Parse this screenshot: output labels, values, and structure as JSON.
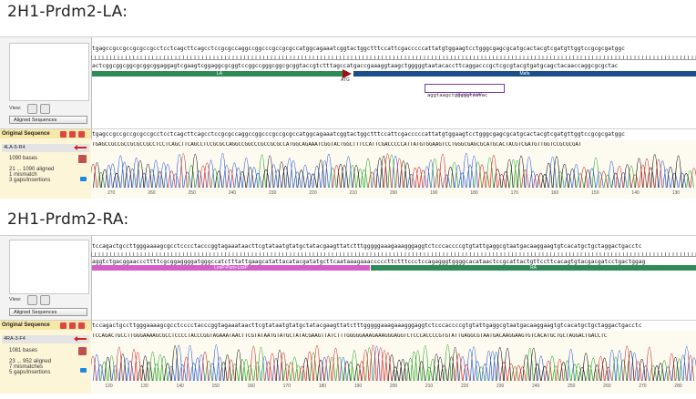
{
  "sections": [
    {
      "title": "2H1-Prdm2-LA:",
      "top_strand": "tgagccgccgccgcgccgcctcctcagcttcagcctccgcgccaggccggcccgccgcgccatggcagaaatcggtactggctttccattcgacccccattatgtggaagtcctgggcgagcgcatgcactacgtcgatgttggtccgcgcgatggc",
      "bottom_strand": "actcggcggcggcgcggcggaggagtcgaagtcggaggcgcggtccggccgggcggcgcggtaccgtctttagccatgaccgaaaggtaagctgggggtaatacaccttcaggacccgctcgcgtacgtgatgcagctacaaccaggcgcgctac",
      "features": [
        {
          "label": "LA",
          "color": "#2e8b57"
        },
        {
          "label": "Mafa",
          "color": "#1b4f8a"
        }
      ],
      "atg_label": "ATG",
      "primer_seq": "aggtaagctgggggtaatac",
      "primer_label": "TKJ113-3-R2",
      "view_label": "View:",
      "dropdown": "Aligned Sequences",
      "original_sequence_label": "Original Sequence",
      "read_name": "4LA-5-R4",
      "read_bases": "1090 bases",
      "read_stats_1": "21 ... 1090 aligned",
      "read_stats_2": "1 mismatch",
      "read_stats_3": "3 gaps/insertions",
      "read_seq": "TGAGCCGCCGCCGCGCCGCCTCCTCAGCTTCAGCCTCCGCGCCAGGCCGGCCCGCCGCGCCATGGCAGAAATCGGTACTGGCTTTCCATTCGACCCCCATTATGTGGAAGTCCTGGGCGAGCGCATGCACTACGTCGATGTTGGTCCGCGCGAT",
      "axis_labels": [
        "270",
        "260",
        "250",
        "240",
        "230",
        "220",
        "210",
        "200",
        "190",
        "180",
        "170",
        "160",
        "150",
        "140",
        "130"
      ]
    },
    {
      "title": "2H1-Prdm2-RA:",
      "top_strand": "tccagactgccttgggaaaagcgcctcccctacccggtagaaataacttcgtataatgtatgctatacgaagttatctttgggggaaagaaagggaggtctcccaccccgtgtattgaggcgtaatgacaaggaagtgtcacatgctgctaggactgacctc",
      "bottom_strand": "aggtctgacggaacccttttcgcggaggggatgggccatctttattgaagcatattacatacgatatgcttcaataaagaaacccccttctttccctccagagggtggggcacataactccgcattactgttccttcacagtgtacgacgatcctgactggag",
      "features": [
        {
          "label": "LoxP-Puro-LoxP",
          "color": "#d45fcb"
        },
        {
          "label": "RA",
          "color": "#2e8b57"
        }
      ],
      "view_label": "View:",
      "dropdown": "Aligned Sequences",
      "original_sequence_label": "Original Sequence",
      "read_name": "4RA-3-F4",
      "read_bases": "1081 bases",
      "read_stats_1": "23 ... 952 aligned",
      "read_stats_2": "7 mismatches",
      "read_stats_3": "5 gaps/insertions",
      "read_seq": "TCCAGACTGCCTTGGGAAAAGCGCCTCCCCTACCCGGTAGAAATAACTTCGTATAATGTATGCTATACGAAGTTATCTTTGGGGGAAAGAAAGGGAGGTCTCCCACCCCGTGTATTGAGGCGTAATGACAAGGAAGTGTCACATGCTGCTAGGACTGACCTC",
      "axis_labels": [
        "120",
        "130",
        "140",
        "150",
        "160",
        "170",
        "180",
        "190",
        "200",
        "210",
        "220",
        "230",
        "240",
        "250",
        "260",
        "270",
        "280"
      ]
    }
  ],
  "colors": {
    "A": "#1fa51f",
    "C": "#2457d6",
    "G": "#111111",
    "T": "#d42020"
  }
}
